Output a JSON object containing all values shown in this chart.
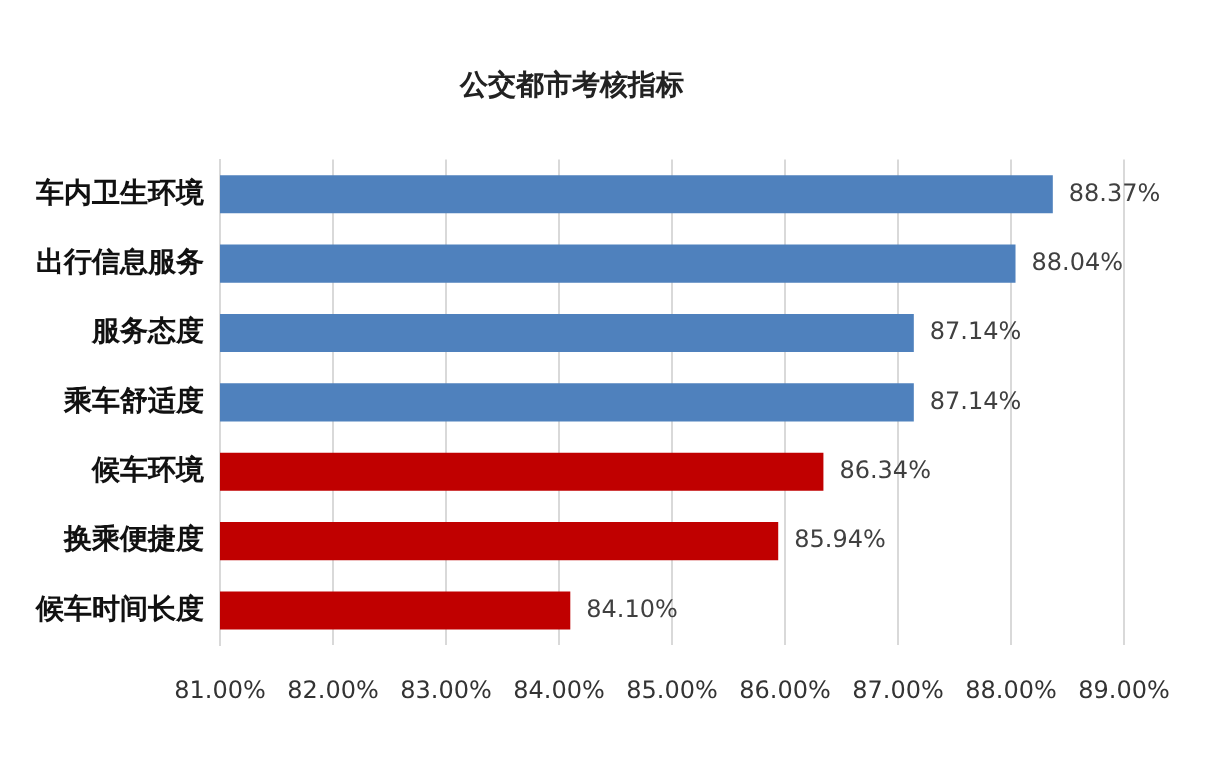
{
  "chart_data": {
    "type": "bar",
    "orientation": "horizontal",
    "title": "公交都市考核指标",
    "categories": [
      "车内卫生环境",
      "出行信息服务",
      "服务态度",
      "乘车舒适度",
      "候车环境",
      "换乘便捷度",
      "候车时间长度"
    ],
    "values": [
      88.37,
      88.04,
      87.14,
      87.14,
      86.34,
      85.94,
      84.1
    ],
    "colors": [
      "#4f81bd",
      "#4f81bd",
      "#4f81bd",
      "#4f81bd",
      "#c00000",
      "#c00000",
      "#c00000"
    ],
    "value_labels": [
      "88.37%",
      "88.04%",
      "87.14%",
      "87.14%",
      "86.34%",
      "85.94%",
      "84.10%"
    ],
    "xlim": [
      81,
      89
    ],
    "xticks": [
      {
        "value": 81,
        "label": "81.00%"
      },
      {
        "value": 82,
        "label": "82.00%"
      },
      {
        "value": 83,
        "label": "83.00%"
      },
      {
        "value": 84,
        "label": "84.00%"
      },
      {
        "value": 85,
        "label": "85.00%"
      },
      {
        "value": 86,
        "label": "86.00%"
      },
      {
        "value": 87,
        "label": "87.00%"
      },
      {
        "value": 88,
        "label": "88.00%"
      },
      {
        "value": 89,
        "label": "89.00%"
      }
    ],
    "grid": "x",
    "legend": false
  }
}
